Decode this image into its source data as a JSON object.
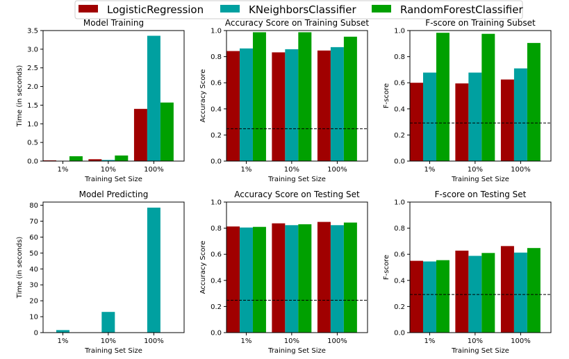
{
  "legend": [
    {
      "name": "LogisticRegression",
      "color": "#a00000"
    },
    {
      "name": "KNeighborsClassifier",
      "color": "#00a0a0"
    },
    {
      "name": "RandomForestClassifier",
      "color": "#00a000"
    }
  ],
  "chart_data": [
    {
      "type": "bar",
      "title": "Model Training",
      "xlabel": "Training Set Size",
      "ylabel": "Time (in seconds)",
      "categories": [
        "1%",
        "10%",
        "100%"
      ],
      "ylim": [
        0,
        3.5
      ],
      "yticks": [
        "0.0",
        "0.5",
        "1.0",
        "1.5",
        "2.0",
        "2.5",
        "3.0",
        "3.5"
      ],
      "series": [
        {
          "name": "LogisticRegression",
          "values": [
            0.02,
            0.05,
            1.4
          ]
        },
        {
          "name": "KNeighborsClassifier",
          "values": [
            0.0,
            0.03,
            3.36
          ]
        },
        {
          "name": "RandomForestClassifier",
          "values": [
            0.13,
            0.15,
            1.57
          ]
        }
      ]
    },
    {
      "type": "bar",
      "title": "Accuracy Score on Training Subset",
      "xlabel": "Training Set Size",
      "ylabel": "Accuracy Score",
      "categories": [
        "1%",
        "10%",
        "100%"
      ],
      "ylim": [
        0,
        1.0
      ],
      "yticks": [
        "0.0",
        "0.2",
        "0.4",
        "0.6",
        "0.8",
        "1.0"
      ],
      "baseline": 0.2478,
      "series": [
        {
          "name": "LogisticRegression",
          "values": [
            0.843,
            0.833,
            0.847
          ]
        },
        {
          "name": "KNeighborsClassifier",
          "values": [
            0.863,
            0.857,
            0.873
          ]
        },
        {
          "name": "RandomForestClassifier",
          "values": [
            0.987,
            0.987,
            0.953
          ]
        }
      ]
    },
    {
      "type": "bar",
      "title": "F-score on Training Subset",
      "xlabel": "Training Set Size",
      "ylabel": "F-score",
      "categories": [
        "1%",
        "10%",
        "100%"
      ],
      "ylim": [
        0,
        1.0
      ],
      "yticks": [
        "0.0",
        "0.2",
        "0.4",
        "0.6",
        "0.8",
        "1.0"
      ],
      "baseline": 0.2917,
      "series": [
        {
          "name": "LogisticRegression",
          "values": [
            0.6,
            0.595,
            0.625
          ]
        },
        {
          "name": "KNeighborsClassifier",
          "values": [
            0.678,
            0.678,
            0.71
          ]
        },
        {
          "name": "RandomForestClassifier",
          "values": [
            0.983,
            0.975,
            0.905
          ]
        }
      ]
    },
    {
      "type": "bar",
      "title": "Model Predicting",
      "xlabel": "Training Set Size",
      "ylabel": "Time (in seconds)",
      "categories": [
        "1%",
        "10%",
        "100%"
      ],
      "ylim": [
        0,
        82
      ],
      "yticks": [
        "0",
        "10",
        "20",
        "30",
        "40",
        "50",
        "60",
        "70",
        "80"
      ],
      "yticks_values": [
        0,
        10,
        20,
        30,
        40,
        50,
        60,
        70,
        80
      ],
      "series": [
        {
          "name": "LogisticRegression",
          "values": [
            0.0,
            0.0,
            0.0
          ]
        },
        {
          "name": "KNeighborsClassifier",
          "values": [
            1.6,
            13.0,
            78.5
          ]
        },
        {
          "name": "RandomForestClassifier",
          "values": [
            0.0,
            0.0,
            0.0
          ]
        }
      ]
    },
    {
      "type": "bar",
      "title": "Accuracy Score on Testing Set",
      "xlabel": "Training Set Size",
      "ylabel": "Accuracy Score",
      "categories": [
        "1%",
        "10%",
        "100%"
      ],
      "ylim": [
        0,
        1.0
      ],
      "yticks": [
        "0.0",
        "0.2",
        "0.4",
        "0.6",
        "0.8",
        "1.0"
      ],
      "baseline": 0.2478,
      "series": [
        {
          "name": "LogisticRegression",
          "values": [
            0.813,
            0.837,
            0.848
          ]
        },
        {
          "name": "KNeighborsClassifier",
          "values": [
            0.805,
            0.823,
            0.823
          ]
        },
        {
          "name": "RandomForestClassifier",
          "values": [
            0.81,
            0.83,
            0.843
          ]
        }
      ]
    },
    {
      "type": "bar",
      "title": "F-score on Testing Set",
      "xlabel": "Training Set Size",
      "ylabel": "F-score",
      "categories": [
        "1%",
        "10%",
        "100%"
      ],
      "ylim": [
        0,
        1.0
      ],
      "yticks": [
        "0.0",
        "0.2",
        "0.4",
        "0.6",
        "0.8",
        "1.0"
      ],
      "baseline": 0.2917,
      "series": [
        {
          "name": "LogisticRegression",
          "values": [
            0.55,
            0.628,
            0.663
          ]
        },
        {
          "name": "KNeighborsClassifier",
          "values": [
            0.545,
            0.588,
            0.613
          ]
        },
        {
          "name": "RandomForestClassifier",
          "values": [
            0.555,
            0.61,
            0.648
          ]
        }
      ]
    }
  ]
}
